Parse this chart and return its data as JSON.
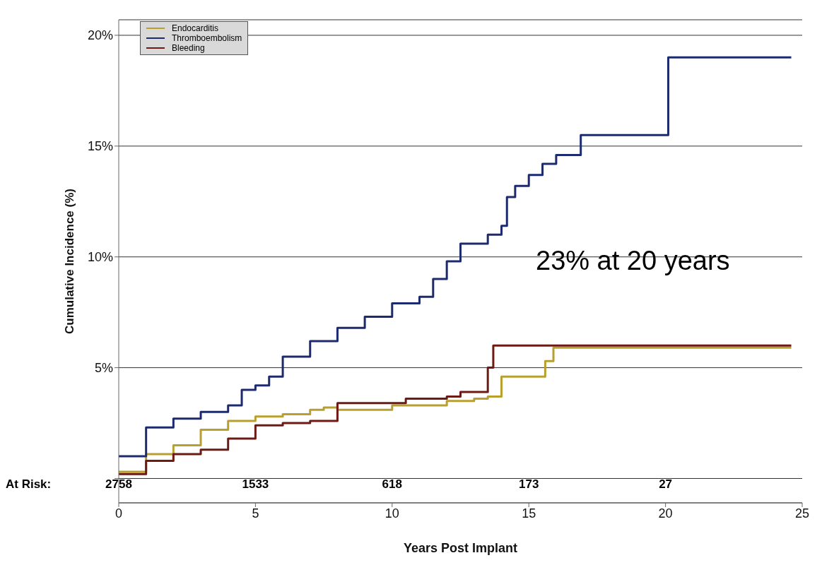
{
  "chart_data": {
    "type": "step",
    "xlabel": "Years Post Implant",
    "ylabel": "Cumulative Incidence (%)",
    "xlim": [
      0,
      25
    ],
    "xticks": [
      0,
      5,
      10,
      15,
      20,
      25
    ],
    "ylim": [
      -1.1,
      20.7
    ],
    "yticks": [
      {
        "value": 0,
        "label": null
      },
      {
        "value": 5,
        "label": "5%"
      },
      {
        "value": 10,
        "label": "10%"
      },
      {
        "value": 15,
        "label": "15%"
      },
      {
        "value": 20,
        "label": "20%"
      }
    ],
    "grid": "y",
    "legend": "top left",
    "series": [
      {
        "name": "Endocarditis",
        "color": "#b8a030",
        "x": [
          0,
          1,
          2,
          3,
          4,
          5,
          6,
          7,
          7.5,
          8,
          10,
          12,
          13,
          13.5,
          14,
          15.4,
          15.6,
          15.9,
          24.6
        ],
        "values": [
          0.3,
          1.1,
          1.5,
          2.2,
          2.6,
          2.8,
          2.9,
          3.1,
          3.2,
          3.1,
          3.3,
          3.5,
          3.6,
          3.7,
          4.6,
          4.6,
          5.3,
          5.9,
          5.9
        ]
      },
      {
        "name": "Thromboembolism",
        "color": "#1c2a6e",
        "x": [
          0,
          1,
          2,
          3,
          4,
          4.5,
          5,
          5.5,
          6,
          7,
          8,
          9,
          10,
          11,
          11.5,
          12,
          12.5,
          13,
          13.5,
          14,
          14.2,
          14.5,
          15,
          15.5,
          16,
          16.9,
          20.1,
          24.6
        ],
        "values": [
          1.0,
          2.3,
          2.7,
          3.0,
          3.3,
          4.0,
          4.2,
          4.6,
          5.5,
          6.2,
          6.8,
          7.3,
          7.9,
          8.2,
          9.0,
          9.8,
          10.6,
          10.6,
          11.0,
          11.4,
          12.7,
          13.2,
          13.7,
          14.2,
          14.6,
          15.5,
          19.0,
          19.0
        ]
      },
      {
        "name": "Bleeding",
        "color": "#6e1a14",
        "x": [
          0,
          1,
          2,
          3,
          4,
          5,
          6,
          7,
          7.8,
          8,
          10,
          10.5,
          12,
          12.5,
          13.2,
          13.5,
          13.7,
          24.6
        ],
        "values": [
          0.2,
          0.8,
          1.1,
          1.3,
          1.8,
          2.4,
          2.5,
          2.6,
          2.6,
          3.4,
          3.4,
          3.6,
          3.7,
          3.9,
          3.9,
          5.0,
          6.0,
          6.0
        ]
      }
    ],
    "annotations": [
      "At Risk:",
      "23% at 20 years",
      "2758",
      "1533",
      "618",
      "173",
      "27"
    ]
  }
}
